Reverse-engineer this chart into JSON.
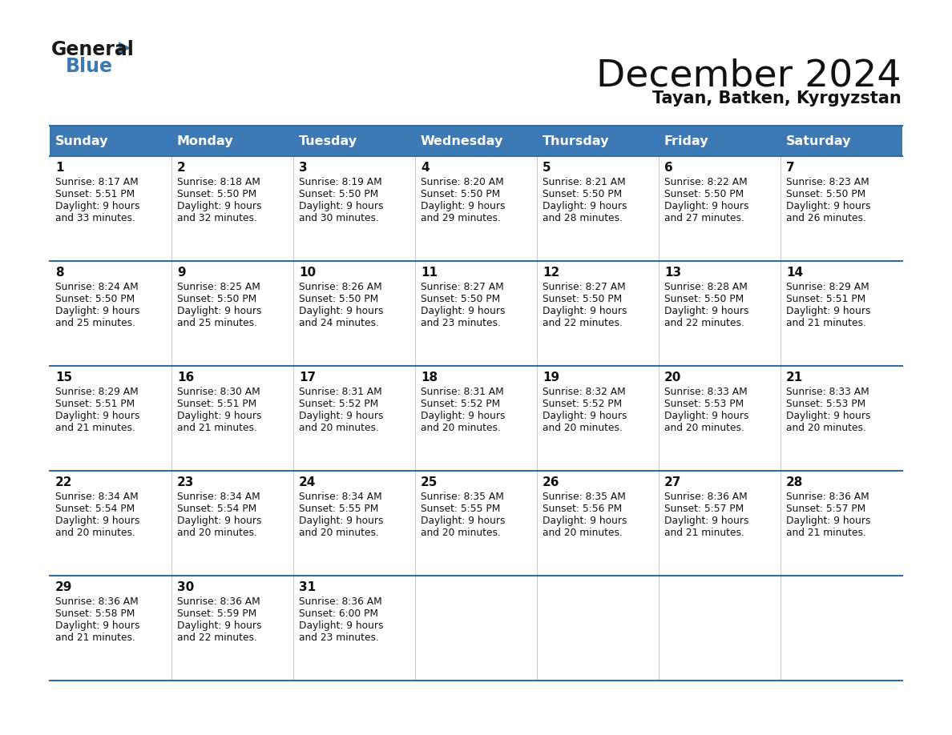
{
  "title": "December 2024",
  "subtitle": "Tayan, Batken, Kyrgyzstan",
  "header_bg": "#3d7ab5",
  "header_text": "#ffffff",
  "cell_border_color": "#2e6da4",
  "day_headers": [
    "Sunday",
    "Monday",
    "Tuesday",
    "Wednesday",
    "Thursday",
    "Friday",
    "Saturday"
  ],
  "calendar": [
    [
      {
        "day": 1,
        "sunrise": "8:17 AM",
        "sunset": "5:51 PM",
        "daylight": "9 hours",
        "daylight2": "and 33 minutes."
      },
      {
        "day": 2,
        "sunrise": "8:18 AM",
        "sunset": "5:50 PM",
        "daylight": "9 hours",
        "daylight2": "and 32 minutes."
      },
      {
        "day": 3,
        "sunrise": "8:19 AM",
        "sunset": "5:50 PM",
        "daylight": "9 hours",
        "daylight2": "and 30 minutes."
      },
      {
        "day": 4,
        "sunrise": "8:20 AM",
        "sunset": "5:50 PM",
        "daylight": "9 hours",
        "daylight2": "and 29 minutes."
      },
      {
        "day": 5,
        "sunrise": "8:21 AM",
        "sunset": "5:50 PM",
        "daylight": "9 hours",
        "daylight2": "and 28 minutes."
      },
      {
        "day": 6,
        "sunrise": "8:22 AM",
        "sunset": "5:50 PM",
        "daylight": "9 hours",
        "daylight2": "and 27 minutes."
      },
      {
        "day": 7,
        "sunrise": "8:23 AM",
        "sunset": "5:50 PM",
        "daylight": "9 hours",
        "daylight2": "and 26 minutes."
      }
    ],
    [
      {
        "day": 8,
        "sunrise": "8:24 AM",
        "sunset": "5:50 PM",
        "daylight": "9 hours",
        "daylight2": "and 25 minutes."
      },
      {
        "day": 9,
        "sunrise": "8:25 AM",
        "sunset": "5:50 PM",
        "daylight": "9 hours",
        "daylight2": "and 25 minutes."
      },
      {
        "day": 10,
        "sunrise": "8:26 AM",
        "sunset": "5:50 PM",
        "daylight": "9 hours",
        "daylight2": "and 24 minutes."
      },
      {
        "day": 11,
        "sunrise": "8:27 AM",
        "sunset": "5:50 PM",
        "daylight": "9 hours",
        "daylight2": "and 23 minutes."
      },
      {
        "day": 12,
        "sunrise": "8:27 AM",
        "sunset": "5:50 PM",
        "daylight": "9 hours",
        "daylight2": "and 22 minutes."
      },
      {
        "day": 13,
        "sunrise": "8:28 AM",
        "sunset": "5:50 PM",
        "daylight": "9 hours",
        "daylight2": "and 22 minutes."
      },
      {
        "day": 14,
        "sunrise": "8:29 AM",
        "sunset": "5:51 PM",
        "daylight": "9 hours",
        "daylight2": "and 21 minutes."
      }
    ],
    [
      {
        "day": 15,
        "sunrise": "8:29 AM",
        "sunset": "5:51 PM",
        "daylight": "9 hours",
        "daylight2": "and 21 minutes."
      },
      {
        "day": 16,
        "sunrise": "8:30 AM",
        "sunset": "5:51 PM",
        "daylight": "9 hours",
        "daylight2": "and 21 minutes."
      },
      {
        "day": 17,
        "sunrise": "8:31 AM",
        "sunset": "5:52 PM",
        "daylight": "9 hours",
        "daylight2": "and 20 minutes."
      },
      {
        "day": 18,
        "sunrise": "8:31 AM",
        "sunset": "5:52 PM",
        "daylight": "9 hours",
        "daylight2": "and 20 minutes."
      },
      {
        "day": 19,
        "sunrise": "8:32 AM",
        "sunset": "5:52 PM",
        "daylight": "9 hours",
        "daylight2": "and 20 minutes."
      },
      {
        "day": 20,
        "sunrise": "8:33 AM",
        "sunset": "5:53 PM",
        "daylight": "9 hours",
        "daylight2": "and 20 minutes."
      },
      {
        "day": 21,
        "sunrise": "8:33 AM",
        "sunset": "5:53 PM",
        "daylight": "9 hours",
        "daylight2": "and 20 minutes."
      }
    ],
    [
      {
        "day": 22,
        "sunrise": "8:34 AM",
        "sunset": "5:54 PM",
        "daylight": "9 hours",
        "daylight2": "and 20 minutes."
      },
      {
        "day": 23,
        "sunrise": "8:34 AM",
        "sunset": "5:54 PM",
        "daylight": "9 hours",
        "daylight2": "and 20 minutes."
      },
      {
        "day": 24,
        "sunrise": "8:34 AM",
        "sunset": "5:55 PM",
        "daylight": "9 hours",
        "daylight2": "and 20 minutes."
      },
      {
        "day": 25,
        "sunrise": "8:35 AM",
        "sunset": "5:55 PM",
        "daylight": "9 hours",
        "daylight2": "and 20 minutes."
      },
      {
        "day": 26,
        "sunrise": "8:35 AM",
        "sunset": "5:56 PM",
        "daylight": "9 hours",
        "daylight2": "and 20 minutes."
      },
      {
        "day": 27,
        "sunrise": "8:36 AM",
        "sunset": "5:57 PM",
        "daylight": "9 hours",
        "daylight2": "and 21 minutes."
      },
      {
        "day": 28,
        "sunrise": "8:36 AM",
        "sunset": "5:57 PM",
        "daylight": "9 hours",
        "daylight2": "and 21 minutes."
      }
    ],
    [
      {
        "day": 29,
        "sunrise": "8:36 AM",
        "sunset": "5:58 PM",
        "daylight": "9 hours",
        "daylight2": "and 21 minutes."
      },
      {
        "day": 30,
        "sunrise": "8:36 AM",
        "sunset": "5:59 PM",
        "daylight": "9 hours",
        "daylight2": "and 22 minutes."
      },
      {
        "day": 31,
        "sunrise": "8:36 AM",
        "sunset": "6:00 PM",
        "daylight": "9 hours",
        "daylight2": "and 23 minutes."
      },
      null,
      null,
      null,
      null
    ]
  ]
}
